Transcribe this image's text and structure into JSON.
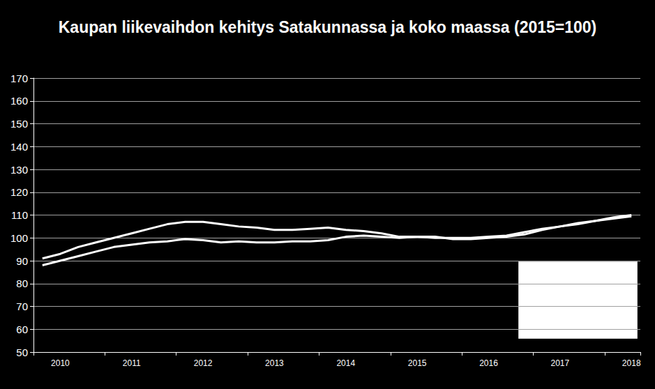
{
  "chart_data": {
    "type": "line",
    "title": "Kaupan liikevaihdon kehitys Satakunnassa ja koko maassa (2015=100)",
    "categories": [
      null,
      "2010",
      null,
      null,
      null,
      "2011",
      null,
      null,
      null,
      "2012",
      null,
      null,
      null,
      "2013",
      null,
      null,
      null,
      "2014",
      null,
      null,
      null,
      "2015",
      null,
      null,
      null,
      "2016",
      null,
      null,
      null,
      "2017",
      null,
      null,
      null,
      "2018"
    ],
    "series": [
      {
        "color": "#ffffff",
        "line_style": "solid",
        "marker": "none",
        "values": [
          91,
          93,
          96,
          98,
          100,
          102,
          104,
          106,
          107,
          107,
          106,
          105,
          104.5,
          103.5,
          103.5,
          104,
          104.5,
          103.5,
          103,
          102,
          100.5,
          100.5,
          100,
          100,
          100,
          100.5,
          101,
          102.5,
          104,
          105,
          106,
          107.5,
          109,
          110
        ]
      },
      {
        "color": "#ffffff",
        "line_style": "solid",
        "marker": "none",
        "values": [
          88,
          90,
          92,
          94,
          96,
          97,
          98,
          98.5,
          99.5,
          99,
          98,
          98.5,
          98,
          98,
          98.5,
          98.5,
          99,
          100.5,
          101,
          100.5,
          100,
          100.5,
          100.5,
          99.5,
          99.5,
          100,
          100.5,
          101.5,
          103.5,
          105,
          106.5,
          107.5,
          108.5,
          109.5
        ]
      }
    ],
    "ylim": [
      50,
      170
    ],
    "yticks": [
      50,
      60,
      70,
      80,
      90,
      100,
      110,
      120,
      130,
      140,
      150,
      160,
      170
    ],
    "grid": true
  }
}
